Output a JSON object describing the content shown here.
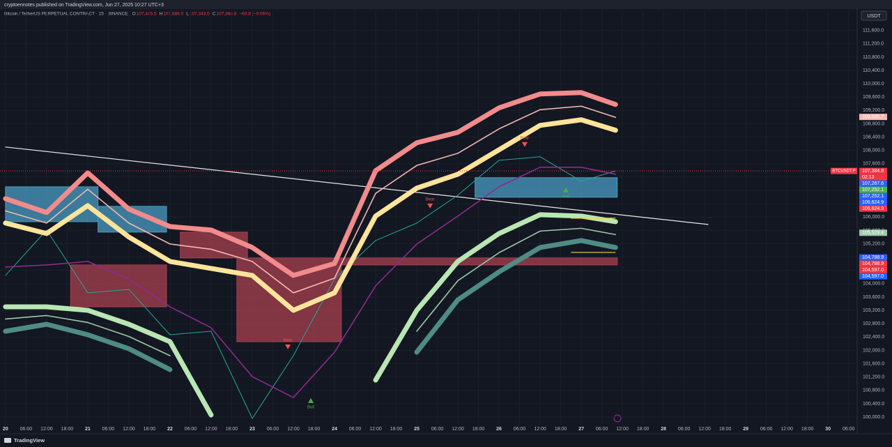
{
  "published": "cryptoennotes published on TradingView.com, Jun 27, 2025 10:27 UTC+3",
  "brand": "TradingView",
  "chart_data": {
    "type": "line",
    "header": {
      "title": "Bitcoin / TetherUS PERPETUAL CONTRACT · 15 · BINANCE",
      "ohlc": [
        {
          "key": "O",
          "value": "107,445.5"
        },
        {
          "key": "H",
          "value": "107,686.0"
        },
        {
          "key": "L",
          "value": "107,343.5"
        },
        {
          "key": "C",
          "value": "107,384.8"
        }
      ],
      "change": "−60.8 (−0.06%)"
    },
    "currency": "USDT",
    "xlim": [
      -1.6,
      248.5
    ],
    "ylim": [
      99750,
      112200
    ],
    "xticks": [
      {
        "value": 0,
        "label": "20"
      },
      {
        "value": 6,
        "label": "06:00"
      },
      {
        "value": 12,
        "label": "12:00"
      },
      {
        "value": 18,
        "label": "18:00"
      },
      {
        "value": 24,
        "label": "21"
      },
      {
        "value": 30,
        "label": "06:00"
      },
      {
        "value": 36,
        "label": "12:00"
      },
      {
        "value": 42,
        "label": "18:00"
      },
      {
        "value": 48,
        "label": "22"
      },
      {
        "value": 54,
        "label": "06:00"
      },
      {
        "value": 60,
        "label": "12:00"
      },
      {
        "value": 66,
        "label": "18:00"
      },
      {
        "value": 72,
        "label": "23"
      },
      {
        "value": 78,
        "label": "06:00"
      },
      {
        "value": 84,
        "label": "12:00"
      },
      {
        "value": 90,
        "label": "18:00"
      },
      {
        "value": 96,
        "label": "24"
      },
      {
        "value": 102,
        "label": "06:00"
      },
      {
        "value": 108,
        "label": "12:00"
      },
      {
        "value": 114,
        "label": "18:00"
      },
      {
        "value": 120,
        "label": "25"
      },
      {
        "value": 126,
        "label": "06:00"
      },
      {
        "value": 132,
        "label": "12:00"
      },
      {
        "value": 138,
        "label": "18:00"
      },
      {
        "value": 144,
        "label": "26"
      },
      {
        "value": 150,
        "label": "06:00"
      },
      {
        "value": 156,
        "label": "12:00"
      },
      {
        "value": 162,
        "label": "18:00"
      },
      {
        "value": 168,
        "label": "27"
      },
      {
        "value": 174,
        "label": "06:00"
      },
      {
        "value": 180,
        "label": "12:00"
      },
      {
        "value": 186,
        "label": "18:00"
      },
      {
        "value": 192,
        "label": "28"
      },
      {
        "value": 198,
        "label": "06:00"
      },
      {
        "value": 204,
        "label": "12:00"
      },
      {
        "value": 210,
        "label": "18:00"
      },
      {
        "value": 216,
        "label": "29"
      },
      {
        "value": 222,
        "label": "06:00"
      },
      {
        "value": 228,
        "label": "12:00"
      },
      {
        "value": 234,
        "label": "18:00"
      },
      {
        "value": 240,
        "label": "30"
      },
      {
        "value": 246,
        "label": "06:00"
      }
    ],
    "yticks": [
      {
        "value": 100000,
        "label": "100,000.0"
      },
      {
        "value": 100400,
        "label": "100,400.0"
      },
      {
        "value": 100800,
        "label": "100,800.0"
      },
      {
        "value": 101200,
        "label": "101,200.0"
      },
      {
        "value": 101600,
        "label": "101,600.0"
      },
      {
        "value": 102000,
        "label": "102,000.0"
      },
      {
        "value": 102400,
        "label": "102,400.0"
      },
      {
        "value": 102800,
        "label": "102,800.0"
      },
      {
        "value": 103200,
        "label": "103,200.0"
      },
      {
        "value": 103600,
        "label": "103,600.0"
      },
      {
        "value": 104000,
        "label": "104,000.0"
      },
      {
        "value": 104400,
        "label": "104,400.0"
      },
      {
        "value": 104800,
        "label": "104,800.0"
      },
      {
        "value": 105200,
        "label": "105,200.0"
      },
      {
        "value": 105600,
        "label": "105,600.0"
      },
      {
        "value": 106000,
        "label": "106,000.0"
      },
      {
        "value": 106400,
        "label": "106,400.0"
      },
      {
        "value": 106800,
        "label": "106,800.0"
      },
      {
        "value": 107200,
        "label": "107,200.0"
      },
      {
        "value": 107600,
        "label": "107,600.0"
      },
      {
        "value": 108000,
        "label": "108,000.0"
      },
      {
        "value": 108400,
        "label": "108,400.0"
      },
      {
        "value": 108800,
        "label": "108,800.0"
      },
      {
        "value": 109200,
        "label": "109,200.0"
      },
      {
        "value": 109600,
        "label": "109,600.0"
      },
      {
        "value": 110000,
        "label": "110,000.0"
      },
      {
        "value": 110400,
        "label": "110,400.0"
      },
      {
        "value": 110800,
        "label": "110,800.0"
      },
      {
        "value": 111200,
        "label": "111,200.0"
      },
      {
        "value": 111600,
        "label": "111,600.0"
      }
    ],
    "zones": [
      {
        "x": [
          0,
          27
        ],
        "y": [
          105862,
          106909
        ],
        "color": "#4a9cc3"
      },
      {
        "x": [
          27,
          47
        ],
        "y": [
          105549,
          106323
        ],
        "color": "#4a9cc3"
      },
      {
        "x": [
          19,
          47
        ],
        "y": [
          103308,
          104564
        ],
        "color": "#a8404f"
      },
      {
        "x": [
          51,
          70.6
        ],
        "y": [
          104774,
          105549
        ],
        "color": "#a8404f"
      },
      {
        "x": [
          67.5,
          98
        ],
        "y": [
          102261,
          104774
        ],
        "color": "#a8404f"
      },
      {
        "x": [
          98,
          178.5
        ],
        "y": [
          104564,
          104774
        ],
        "color": "#a8404f"
      },
      {
        "x": [
          137,
          178.5
        ],
        "y": [
          106595,
          107182
        ],
        "color": "#4a9cc3"
      }
    ],
    "series": [
      {
        "color": "#e8e8e8",
        "x": [
          0,
          205
        ],
        "values": [
          108103,
          105779
        ]
      },
      {
        "color": "#26a69a",
        "x": [
          0,
          12,
          24,
          36,
          48,
          60,
          72,
          84,
          96,
          108,
          120,
          132,
          144,
          156,
          168,
          178
        ],
        "values": [
          104250,
          105611,
          103727,
          103831,
          102470,
          102575,
          99957,
          101842,
          104145,
          105297,
          105821,
          106658,
          107705,
          107810,
          107077,
          107385
        ]
      },
      {
        "color": "#8e2a8e",
        "x": [
          0,
          12,
          24,
          36,
          48,
          60,
          72,
          84,
          96,
          108,
          120,
          132,
          144,
          156,
          168,
          178
        ],
        "values": [
          104501,
          104564,
          104669,
          104145,
          103308,
          102680,
          101214,
          100586,
          101947,
          103936,
          105192,
          106030,
          106909,
          107496,
          107496,
          107286
        ]
      },
      {
        "color": "#f28b8b",
        "x": [
          0,
          12,
          24,
          36,
          48,
          60,
          72,
          84,
          96,
          108,
          120,
          132,
          144,
          156,
          168,
          178
        ],
        "values": [
          106553,
          106135,
          107328,
          106239,
          105716,
          105611,
          105088,
          104250,
          104606,
          107391,
          108229,
          108543,
          109276,
          109694,
          109736,
          109380
        ]
      },
      {
        "color": "#f4b9b0",
        "x": [
          0,
          12,
          24,
          36,
          48,
          60,
          72,
          84,
          96,
          108,
          120,
          132,
          144,
          156,
          168,
          178
        ],
        "values": [
          106187,
          105821,
          106836,
          105821,
          105193,
          105035,
          104669,
          103727,
          104167,
          106711,
          107549,
          107915,
          108648,
          109223,
          109328,
          108993
        ]
      },
      {
        "color": "#fde49a",
        "x": [
          0,
          12,
          24,
          36,
          48,
          60,
          72,
          84,
          96,
          108,
          120,
          132,
          144,
          156,
          168,
          178
        ],
        "values": [
          105821,
          105506,
          106344,
          105402,
          104669,
          104459,
          104250,
          103203,
          103727,
          106030,
          106868,
          107286,
          108019,
          108752,
          108920,
          108606
        ]
      },
      {
        "color": "#b9e6b3",
        "x": [
          0,
          12,
          24,
          36,
          48,
          60,
          72,
          84,
          96,
          108,
          120,
          132,
          144,
          156,
          168,
          178
        ],
        "values": [
          103308,
          103308,
          103203,
          102784,
          102261,
          100062,
          null,
          null,
          null,
          101109,
          103203,
          104669,
          105506,
          106072,
          106030,
          105862
        ]
      },
      {
        "color": "#9fc9a8",
        "x": [
          0,
          12,
          24,
          36,
          48,
          60,
          72,
          84,
          96,
          108,
          120,
          132,
          144,
          156,
          168,
          178
        ],
        "values": [
          102942,
          103046,
          102837,
          102418,
          101842,
          null,
          null,
          null,
          null,
          null,
          102575,
          104093,
          104931,
          105580,
          105664,
          105475
        ]
      },
      {
        "color": "#4e8c85",
        "x": [
          0,
          12,
          24,
          36,
          48,
          60,
          72,
          84,
          96,
          108,
          120,
          132,
          144,
          156,
          168,
          178
        ],
        "values": [
          102575,
          102784,
          102470,
          102051,
          101423,
          null,
          null,
          null,
          null,
          null,
          101947,
          103517,
          104355,
          105088,
          105297,
          105088
        ]
      }
    ],
    "levels": [
      {
        "x": [
          165,
          178
        ],
        "value": 105967,
        "color": "#f0d43a"
      },
      {
        "x": [
          165,
          178
        ],
        "value": 104941,
        "color": "#f0d43a"
      }
    ],
    "signals": [
      {
        "x": 151.5,
        "y": 108166,
        "label": "Bear",
        "dir": "down",
        "color": "#f05350"
      },
      {
        "x": 123.9,
        "y": 106323,
        "label": "Bear",
        "dir": "down",
        "color": "#f05350"
      },
      {
        "x": 82.4,
        "y": 102093,
        "label": "Bear",
        "dir": "down",
        "color": "#f05350"
      },
      {
        "x": 163.5,
        "y": 106826,
        "label": "Bull",
        "dir": "up",
        "color": "#4caf50"
      },
      {
        "x": 89.1,
        "y": 100507,
        "label": "Bull",
        "dir": "up",
        "color": "#4caf50"
      }
    ],
    "symbol_tag": "BTCUSDT.P",
    "countdown": "02:13",
    "price_tags": [
      {
        "value": 109005.7,
        "label": "109,005.7",
        "color": "#f4b9b0"
      },
      {
        "value": 107384.8,
        "label": "107,384.8",
        "color": "#f23645"
      },
      {
        "value": 107267.6,
        "label": "107,267.6",
        "color": "#2962ff"
      },
      {
        "value": 107252.1,
        "label": "107,252.1",
        "color": "#4caf50"
      },
      {
        "value": 107252.1,
        "label": "107,252.1",
        "color": "#2962ff"
      },
      {
        "value": 106624.9,
        "label": "106,624.9",
        "color": "#2962ff"
      },
      {
        "value": 106624.9,
        "label": "106,624.9",
        "color": "#f23645"
      },
      {
        "value": 105529.4,
        "label": "105,529.4",
        "color": "#9fc9a8"
      },
      {
        "value": 104788.9,
        "label": "104,788.9",
        "color": "#2962ff"
      },
      {
        "value": 104788.9,
        "label": "104,788.9",
        "color": "#f23645"
      },
      {
        "value": 104597.0,
        "label": "104,597.0",
        "color": "#f23645"
      },
      {
        "value": 104597.0,
        "label": "104,597.0",
        "color": "#2962ff"
      }
    ]
  }
}
